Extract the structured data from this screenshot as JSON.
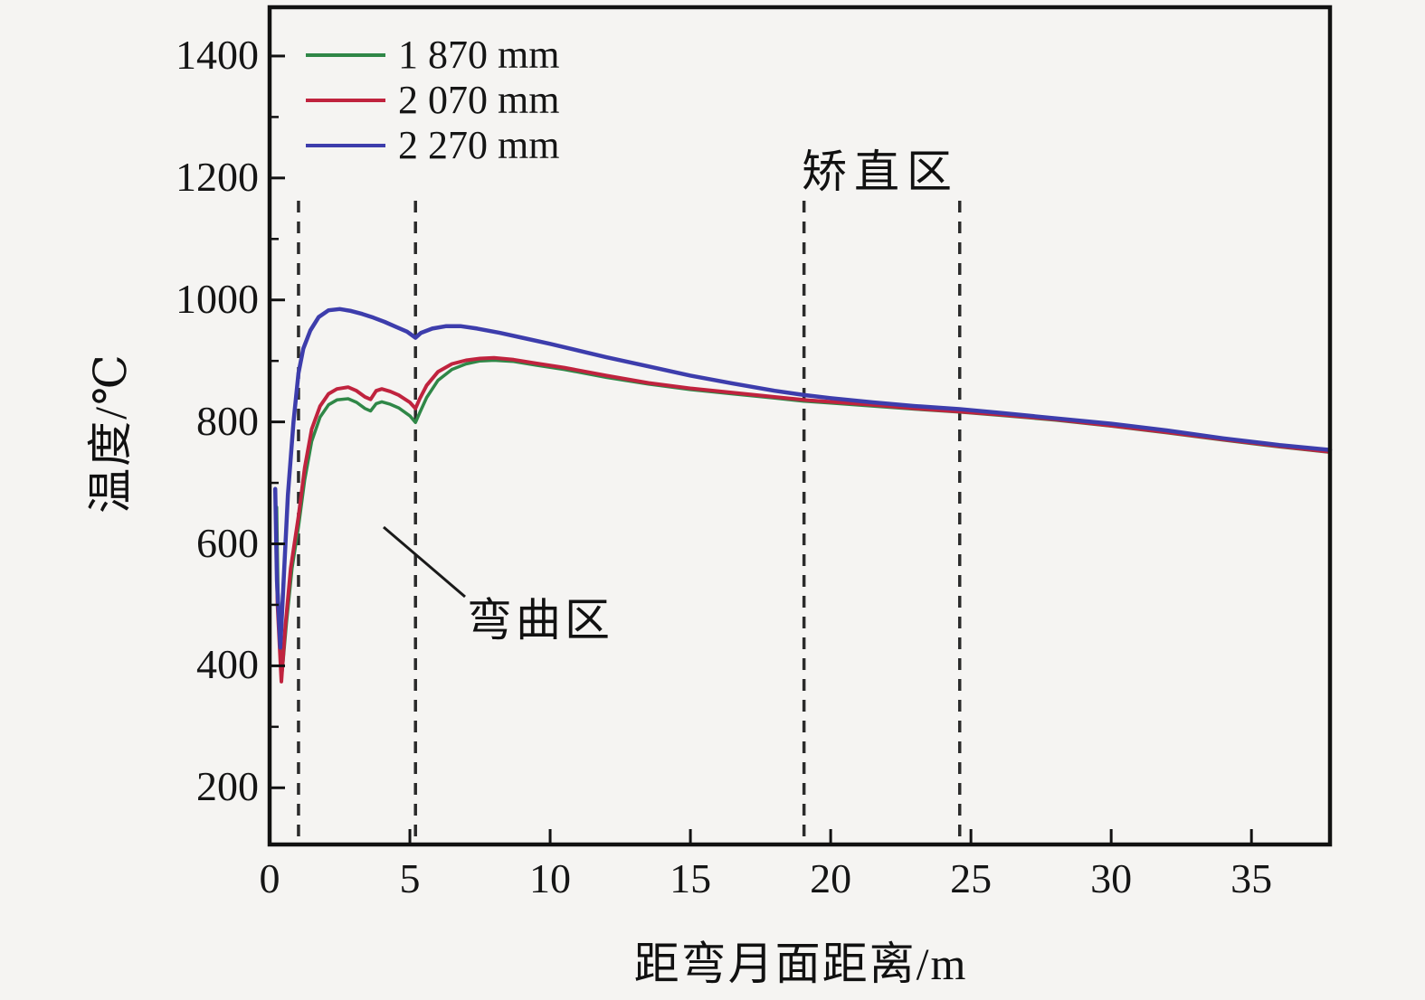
{
  "chart_data": {
    "type": "line",
    "title": "",
    "xlabel": "距弯月面距离/m",
    "ylabel": "温度/℃",
    "xlim": [
      0,
      37.8
    ],
    "ylim": [
      107,
      1480
    ],
    "xticks": [
      0,
      5,
      10,
      15,
      20,
      25,
      30,
      35
    ],
    "yticks": [
      200,
      400,
      600,
      800,
      1000,
      1200,
      1400
    ],
    "y_minor_ticks": [
      300,
      500,
      700,
      900,
      1100,
      1300
    ],
    "grid": false,
    "legend_position": "top-left",
    "axis_color": "#111111",
    "background_color": "#f5f4f2",
    "dashed_vlines_x": [
      1.03,
      5.2,
      19.05,
      24.6
    ],
    "dashed_vline_color": "#2b2b2b",
    "series": [
      {
        "name": "1 870 mm",
        "color": "#2f8747",
        "points": [
          [
            0.25,
            660
          ],
          [
            0.3,
            520
          ],
          [
            0.45,
            392
          ],
          [
            0.6,
            470
          ],
          [
            0.8,
            560
          ],
          [
            1.03,
            628
          ],
          [
            1.25,
            705
          ],
          [
            1.5,
            768
          ],
          [
            1.8,
            808
          ],
          [
            2.1,
            828
          ],
          [
            2.4,
            836
          ],
          [
            2.8,
            838
          ],
          [
            3.1,
            832
          ],
          [
            3.4,
            822
          ],
          [
            3.6,
            818
          ],
          [
            3.8,
            830
          ],
          [
            4.0,
            833
          ],
          [
            4.3,
            829
          ],
          [
            4.6,
            823
          ],
          [
            5.0,
            810
          ],
          [
            5.2,
            799
          ],
          [
            5.35,
            815
          ],
          [
            5.6,
            840
          ],
          [
            6.0,
            868
          ],
          [
            6.5,
            886
          ],
          [
            7.0,
            895
          ],
          [
            7.5,
            900
          ],
          [
            8.0,
            901
          ],
          [
            8.7,
            899
          ],
          [
            9.5,
            893
          ],
          [
            10.5,
            886
          ],
          [
            12,
            873
          ],
          [
            13.5,
            862
          ],
          [
            15,
            853
          ],
          [
            16.5,
            846
          ],
          [
            18,
            839
          ],
          [
            19.05,
            834
          ],
          [
            20,
            831
          ],
          [
            21.5,
            826
          ],
          [
            23,
            821
          ],
          [
            24.6,
            816
          ],
          [
            26,
            811
          ],
          [
            28,
            803
          ],
          [
            30,
            793
          ],
          [
            32,
            782
          ],
          [
            34,
            770
          ],
          [
            36,
            759
          ],
          [
            37.8,
            750
          ]
        ]
      },
      {
        "name": "2 070 mm",
        "color": "#c0233e",
        "points": [
          [
            0.22,
            650
          ],
          [
            0.28,
            500
          ],
          [
            0.42,
            374
          ],
          [
            0.55,
            460
          ],
          [
            0.75,
            560
          ],
          [
            1.03,
            645
          ],
          [
            1.25,
            725
          ],
          [
            1.5,
            788
          ],
          [
            1.8,
            826
          ],
          [
            2.1,
            846
          ],
          [
            2.4,
            854
          ],
          [
            2.8,
            857
          ],
          [
            3.1,
            851
          ],
          [
            3.4,
            841
          ],
          [
            3.6,
            837
          ],
          [
            3.8,
            851
          ],
          [
            4.0,
            854
          ],
          [
            4.3,
            850
          ],
          [
            4.6,
            844
          ],
          [
            5.0,
            832
          ],
          [
            5.2,
            822
          ],
          [
            5.35,
            838
          ],
          [
            5.6,
            860
          ],
          [
            6.0,
            882
          ],
          [
            6.5,
            895
          ],
          [
            7.0,
            901
          ],
          [
            7.5,
            904
          ],
          [
            8.0,
            905
          ],
          [
            8.7,
            902
          ],
          [
            9.5,
            896
          ],
          [
            10.5,
            889
          ],
          [
            12,
            876
          ],
          [
            13.5,
            864
          ],
          [
            15,
            855
          ],
          [
            16.5,
            848
          ],
          [
            18,
            841
          ],
          [
            19.05,
            836
          ],
          [
            20,
            833
          ],
          [
            21.5,
            828
          ],
          [
            23,
            822
          ],
          [
            24.6,
            817
          ],
          [
            26,
            812
          ],
          [
            28,
            804
          ],
          [
            30,
            794
          ],
          [
            32,
            783
          ],
          [
            34,
            771
          ],
          [
            36,
            760
          ],
          [
            37.8,
            751
          ]
        ]
      },
      {
        "name": "2 270 mm",
        "color": "#3d3dac",
        "points": [
          [
            0.2,
            690
          ],
          [
            0.26,
            540
          ],
          [
            0.38,
            430
          ],
          [
            0.5,
            540
          ],
          [
            0.65,
            680
          ],
          [
            0.85,
            800
          ],
          [
            1.03,
            880
          ],
          [
            1.2,
            920
          ],
          [
            1.45,
            950
          ],
          [
            1.75,
            972
          ],
          [
            2.1,
            983
          ],
          [
            2.5,
            985
          ],
          [
            2.9,
            982
          ],
          [
            3.3,
            977
          ],
          [
            3.7,
            971
          ],
          [
            4.1,
            964
          ],
          [
            4.5,
            956
          ],
          [
            4.9,
            948
          ],
          [
            5.2,
            938
          ],
          [
            5.4,
            946
          ],
          [
            5.8,
            953
          ],
          [
            6.3,
            957
          ],
          [
            6.8,
            957
          ],
          [
            7.4,
            953
          ],
          [
            8.2,
            946
          ],
          [
            9,
            938
          ],
          [
            10,
            928
          ],
          [
            11,
            917
          ],
          [
            12,
            906
          ],
          [
            13.5,
            891
          ],
          [
            15,
            876
          ],
          [
            16.5,
            863
          ],
          [
            18,
            851
          ],
          [
            19.05,
            844
          ],
          [
            20,
            839
          ],
          [
            21.5,
            832
          ],
          [
            23,
            826
          ],
          [
            24.6,
            821
          ],
          [
            26,
            815
          ],
          [
            28,
            806
          ],
          [
            30,
            797
          ],
          [
            32,
            786
          ],
          [
            34,
            773
          ],
          [
            36,
            762
          ],
          [
            37.8,
            754
          ]
        ]
      }
    ],
    "annotations": {
      "straightening": {
        "text": "矫直区"
      },
      "bending": {
        "text": "弯曲区"
      }
    }
  }
}
